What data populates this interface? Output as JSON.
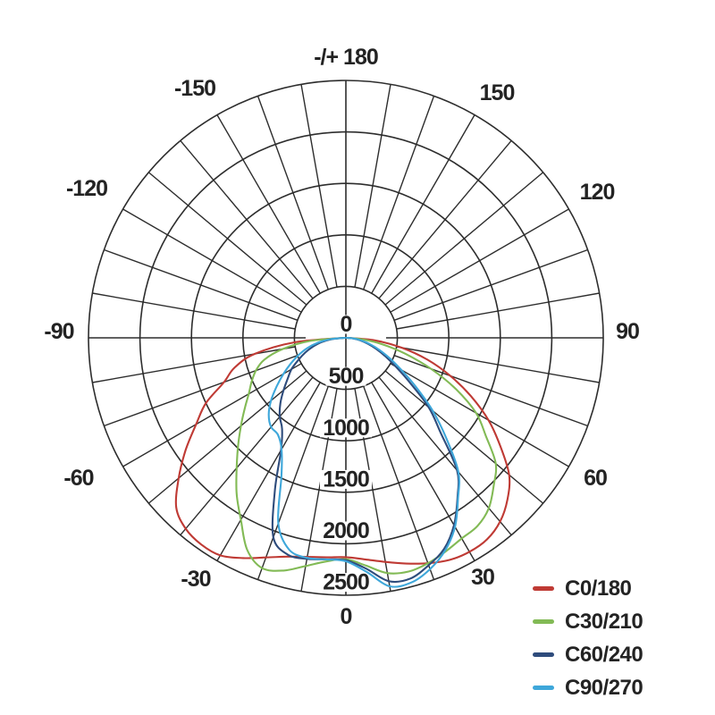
{
  "page": {
    "background": "#ffffff",
    "grid_color": "#2d2d2d",
    "text_color": "#232323"
  },
  "chart_data": {
    "type": "line",
    "subtype": "polar-photometric",
    "title": "",
    "angle_axis": {
      "spoke_step_deg": 10,
      "labels": [
        {
          "angle": 180,
          "text": "-/+ 180"
        },
        {
          "angle": -150,
          "text": "-150"
        },
        {
          "angle": 150,
          "text": "150"
        },
        {
          "angle": -120,
          "text": "-120"
        },
        {
          "angle": 120,
          "text": "120"
        },
        {
          "angle": -90,
          "text": "-90"
        },
        {
          "angle": 90,
          "text": "90"
        },
        {
          "angle": -60,
          "text": "-60"
        },
        {
          "angle": 60,
          "text": "60"
        },
        {
          "angle": -30,
          "text": "-30"
        },
        {
          "angle": 30,
          "text": "30"
        },
        {
          "angle": 0,
          "text": "0"
        }
      ]
    },
    "radial_axis": {
      "ticks": [
        0,
        500,
        1000,
        1500,
        2000,
        2500
      ],
      "max": 2500
    },
    "legend_position": "bottom-right",
    "series": [
      {
        "name": "C0/180",
        "color": "#bf3a34",
        "points": [
          [
            -90,
            20
          ],
          [
            -85,
            500
          ],
          [
            -80,
            900
          ],
          [
            -75,
            1120
          ],
          [
            -70,
            1260
          ],
          [
            -65,
            1500
          ],
          [
            -60,
            1680
          ],
          [
            -55,
            1900
          ],
          [
            -50,
            2120
          ],
          [
            -45,
            2330
          ],
          [
            -40,
            2420
          ],
          [
            -35,
            2450
          ],
          [
            -30,
            2440
          ],
          [
            -25,
            2360
          ],
          [
            -20,
            2270
          ],
          [
            -15,
            2200
          ],
          [
            -10,
            2160
          ],
          [
            -5,
            2140
          ],
          [
            0,
            2130
          ],
          [
            5,
            2160
          ],
          [
            10,
            2210
          ],
          [
            15,
            2270
          ],
          [
            20,
            2330
          ],
          [
            25,
            2380
          ],
          [
            30,
            2400
          ],
          [
            35,
            2390
          ],
          [
            40,
            2330
          ],
          [
            45,
            2220
          ],
          [
            50,
            2070
          ],
          [
            55,
            1830
          ],
          [
            60,
            1600
          ],
          [
            65,
            1340
          ],
          [
            70,
            1080
          ],
          [
            75,
            820
          ],
          [
            80,
            550
          ],
          [
            85,
            280
          ],
          [
            90,
            15
          ]
        ]
      },
      {
        "name": "C30/210",
        "color": "#82ba55",
        "points": [
          [
            -90,
            15
          ],
          [
            -85,
            350
          ],
          [
            -80,
            620
          ],
          [
            -75,
            820
          ],
          [
            -70,
            930
          ],
          [
            -65,
            1010
          ],
          [
            -60,
            1090
          ],
          [
            -55,
            1200
          ],
          [
            -50,
            1330
          ],
          [
            -45,
            1480
          ],
          [
            -40,
            1650
          ],
          [
            -35,
            1850
          ],
          [
            -30,
            2040
          ],
          [
            -25,
            2270
          ],
          [
            -20,
            2380
          ],
          [
            -15,
            2340
          ],
          [
            -10,
            2250
          ],
          [
            -5,
            2180
          ],
          [
            0,
            2150
          ],
          [
            5,
            2220
          ],
          [
            10,
            2320
          ],
          [
            15,
            2350
          ],
          [
            20,
            2330
          ],
          [
            25,
            2290
          ],
          [
            30,
            2250
          ],
          [
            35,
            2230
          ],
          [
            40,
            2160
          ],
          [
            45,
            2030
          ],
          [
            50,
            1900
          ],
          [
            55,
            1660
          ],
          [
            60,
            1460
          ],
          [
            65,
            1180
          ],
          [
            70,
            880
          ],
          [
            75,
            600
          ],
          [
            80,
            360
          ],
          [
            85,
            160
          ],
          [
            90,
            10
          ]
        ]
      },
      {
        "name": "C60/240",
        "color": "#2e4c7c",
        "points": [
          [
            -90,
            10
          ],
          [
            -85,
            130
          ],
          [
            -80,
            240
          ],
          [
            -75,
            330
          ],
          [
            -70,
            420
          ],
          [
            -65,
            510
          ],
          [
            -60,
            610
          ],
          [
            -55,
            690
          ],
          [
            -50,
            790
          ],
          [
            -45,
            900
          ],
          [
            -40,
            1000
          ],
          [
            -35,
            1080
          ],
          [
            -30,
            1260
          ],
          [
            -25,
            1630
          ],
          [
            -20,
            2060
          ],
          [
            -15,
            2180
          ],
          [
            -10,
            2180
          ],
          [
            -5,
            2160
          ],
          [
            0,
            2160
          ],
          [
            5,
            2250
          ],
          [
            10,
            2400
          ],
          [
            15,
            2420
          ],
          [
            20,
            2350
          ],
          [
            25,
            2260
          ],
          [
            30,
            2100
          ],
          [
            35,
            1890
          ],
          [
            40,
            1680
          ],
          [
            45,
            1300
          ],
          [
            50,
            1050
          ],
          [
            55,
            760
          ],
          [
            60,
            560
          ],
          [
            65,
            420
          ],
          [
            70,
            310
          ],
          [
            75,
            220
          ],
          [
            80,
            140
          ],
          [
            85,
            70
          ],
          [
            90,
            5
          ]
        ]
      },
      {
        "name": "C90/270",
        "color": "#3ea7da",
        "points": [
          [
            -90,
            10
          ],
          [
            -85,
            150
          ],
          [
            -80,
            280
          ],
          [
            -75,
            390
          ],
          [
            -70,
            490
          ],
          [
            -65,
            590
          ],
          [
            -60,
            700
          ],
          [
            -55,
            820
          ],
          [
            -50,
            950
          ],
          [
            -45,
            1060
          ],
          [
            -40,
            1130
          ],
          [
            -35,
            1150
          ],
          [
            -30,
            1250
          ],
          [
            -25,
            1480
          ],
          [
            -20,
            1920
          ],
          [
            -15,
            2130
          ],
          [
            -10,
            2170
          ],
          [
            -5,
            2160
          ],
          [
            0,
            2170
          ],
          [
            5,
            2280
          ],
          [
            10,
            2450
          ],
          [
            15,
            2460
          ],
          [
            20,
            2390
          ],
          [
            25,
            2280
          ],
          [
            30,
            2120
          ],
          [
            35,
            1900
          ],
          [
            40,
            1700
          ],
          [
            45,
            1380
          ],
          [
            50,
            1100
          ],
          [
            55,
            830
          ],
          [
            60,
            620
          ],
          [
            65,
            470
          ],
          [
            70,
            350
          ],
          [
            75,
            250
          ],
          [
            80,
            160
          ],
          [
            85,
            80
          ],
          [
            90,
            5
          ]
        ]
      }
    ]
  }
}
